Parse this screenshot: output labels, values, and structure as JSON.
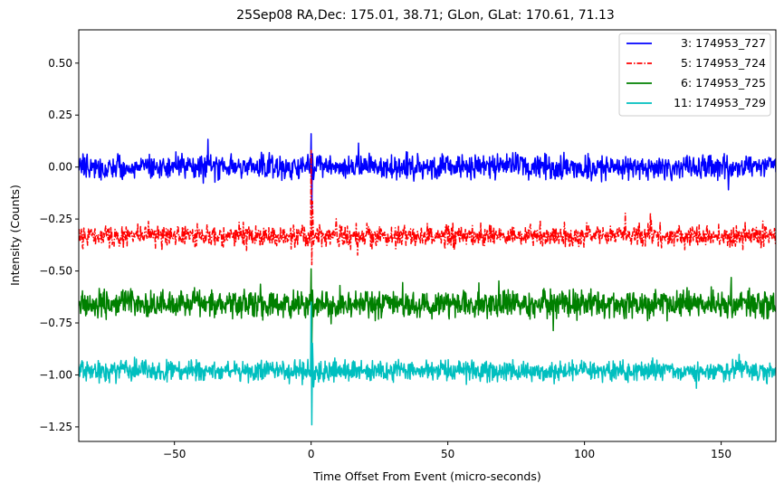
{
  "chart_data": {
    "type": "line",
    "title": "25Sep08 RA,Dec:  175.01,  38.71; GLon, GLat:  170.61,  71.13",
    "xlabel": "Time Offset From Event (micro-seconds)",
    "ylabel": "Intensity (Counts)",
    "xlim": [
      -85,
      170
    ],
    "ylim": [
      -1.32,
      0.66
    ],
    "x_ticks": [
      -50,
      0,
      50,
      100,
      150
    ],
    "x_tick_labels": [
      "−50",
      "0",
      "50",
      "100",
      "150"
    ],
    "y_ticks": [
      0.5,
      0.25,
      0.0,
      -0.25,
      -0.5,
      -0.75,
      -1.0,
      -1.25
    ],
    "y_tick_labels": [
      "0.50",
      "0.25",
      "0.00",
      "−0.25",
      "−0.50",
      "−0.75",
      "−1.00",
      "−1.25"
    ],
    "legend_position": "top-right",
    "series": [
      {
        "name": "3: 174953_727",
        "color": "#0000ff",
        "style": "solid",
        "baseline": 0.0,
        "noise_amplitude": 0.045,
        "spike_min": -0.2,
        "spike_max": 0.16,
        "seed": 3
      },
      {
        "name": "5: 174953_724",
        "color": "#ff0000",
        "style": "dashdot",
        "baseline": -0.33,
        "noise_amplitude": 0.042,
        "spike_min": -0.47,
        "spike_max": 0.08,
        "seed": 5
      },
      {
        "name": "6: 174953_725",
        "color": "#008000",
        "style": "solid",
        "baseline": -0.66,
        "noise_amplitude": 0.05,
        "spike_min": -0.86,
        "spike_max": -0.49,
        "seed": 6
      },
      {
        "name": "11: 174953_729",
        "color": "#00bfbf",
        "style": "solid",
        "baseline": -0.98,
        "noise_amplitude": 0.038,
        "spike_min": -1.24,
        "spike_max": -0.65,
        "seed": 11
      }
    ]
  }
}
